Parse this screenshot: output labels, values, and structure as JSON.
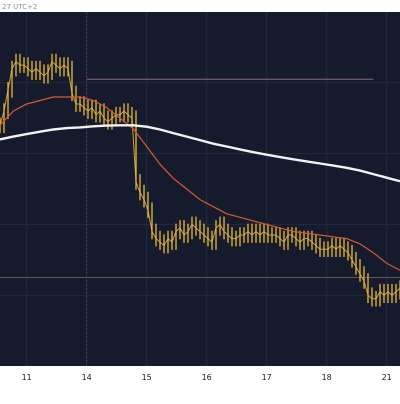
{
  "header": {
    "timezone_text": "27 UTC+2"
  },
  "colors": {
    "plot_bg": "#151b2c",
    "page_bg": "#ffffff",
    "grid": "#222a3d",
    "price": "#e8b93a",
    "ma_fast": "#d8582f",
    "ma_slow": "#f2f2f2",
    "level_upper": "#8a6a78",
    "level_lower": "#6a5346",
    "tick_text": "#1a1a1a"
  },
  "chart_data": {
    "type": "line",
    "xlabel": "",
    "ylabel": "",
    "title": "",
    "x_ticks": [
      {
        "label": "11",
        "t": 2
      },
      {
        "label": "14",
        "t": 6.5
      },
      {
        "label": "15",
        "t": 11
      },
      {
        "label": "16",
        "t": 15.5
      },
      {
        "label": "17",
        "t": 20
      },
      {
        "label": "18",
        "t": 24.5
      },
      {
        "label": "21",
        "t": 29
      }
    ],
    "xlim": [
      0,
      30
    ],
    "ylim": [
      0,
      100
    ],
    "grid": true,
    "series": [
      {
        "role": "price",
        "x": [
          0,
          0.3,
          0.6,
          0.9,
          1.2,
          1.5,
          1.8,
          2.1,
          2.4,
          2.7,
          3,
          3.3,
          3.6,
          3.9,
          4.2,
          4.5,
          4.8,
          5.1,
          5.4,
          5.7,
          6,
          6.3,
          6.6,
          6.9,
          7.2,
          7.5,
          7.8,
          8.1,
          8.4,
          8.7,
          9,
          9.3,
          9.6,
          9.9,
          10.2,
          10.5,
          10.8,
          11.1,
          11.4,
          11.7,
          12,
          12.3,
          12.6,
          12.9,
          13.2,
          13.5,
          13.8,
          14.1,
          14.4,
          14.7,
          15,
          15.3,
          15.6,
          15.9,
          16.2,
          16.5,
          16.8,
          17.1,
          17.4,
          17.7,
          18,
          18.3,
          18.6,
          18.9,
          19.2,
          19.5,
          19.8,
          20.1,
          20.4,
          20.7,
          21,
          21.3,
          21.6,
          21.9,
          22.2,
          22.5,
          22.8,
          23.1,
          23.4,
          23.7,
          24,
          24.3,
          24.6,
          24.9,
          25.2,
          25.5,
          25.8,
          26.1,
          26.4,
          26.7,
          27,
          27.3,
          27.6,
          27.9,
          28.2,
          28.5,
          28.8,
          29.1,
          29.4,
          29.7,
          30
        ],
        "y": [
          68,
          72,
          78,
          84,
          86,
          85,
          85,
          84,
          83,
          84,
          83,
          82,
          83,
          86,
          85,
          84,
          85,
          84,
          77,
          74,
          74,
          73,
          72,
          73,
          71,
          72,
          70,
          69,
          70,
          71,
          71,
          72,
          71,
          70,
          52,
          49,
          47,
          44,
          38,
          36,
          35,
          34,
          36,
          35,
          38,
          39,
          37,
          38,
          40,
          39,
          38,
          37,
          36,
          35,
          39,
          40,
          38,
          37,
          36,
          36,
          37,
          37,
          38,
          37,
          38,
          37,
          38,
          37,
          37,
          37,
          36,
          35,
          37,
          37,
          36,
          35,
          36,
          36,
          35,
          34,
          33,
          33,
          33,
          34,
          33,
          34,
          33,
          32,
          30,
          28,
          26,
          24,
          20,
          19,
          19,
          21,
          20,
          21,
          20,
          21,
          22
        ]
      },
      {
        "role": "ma_fast",
        "x": [
          0,
          1,
          2,
          3,
          4,
          5,
          6,
          7,
          8,
          9,
          10,
          11,
          12,
          13,
          14,
          15,
          16,
          17,
          18,
          19,
          20,
          21,
          22,
          23,
          24,
          25,
          26,
          27,
          28,
          29,
          30
        ],
        "y": [
          68,
          72,
          74,
          75,
          76,
          76,
          76,
          75,
          73,
          70,
          67,
          62,
          57,
          53,
          50,
          47,
          45,
          43,
          42,
          41,
          40,
          39,
          38,
          37.5,
          37,
          36.5,
          36,
          34.5,
          32,
          29,
          27
        ]
      },
      {
        "role": "ma_slow",
        "x": [
          0,
          1,
          2,
          3,
          4,
          5,
          6,
          7,
          8,
          9,
          10,
          11,
          12,
          13,
          14,
          15,
          16,
          17,
          18,
          19,
          20,
          21,
          22,
          23,
          24,
          25,
          26,
          27,
          28,
          29,
          30
        ],
        "y": [
          64,
          64.8,
          65.5,
          66.2,
          66.8,
          67.2,
          67.4,
          67.7,
          67.9,
          68,
          68,
          67.6,
          66.8,
          65.8,
          64.8,
          63.8,
          62.8,
          62,
          61.2,
          60.4,
          59.7,
          59,
          58.4,
          57.8,
          57.2,
          56.6,
          56,
          55.2,
          54.2,
          53.2,
          52.2
        ]
      }
    ],
    "levels": [
      {
        "role": "level_upper",
        "y": 81,
        "x_from": 6.5,
        "x_to": 28
      },
      {
        "role": "level_lower",
        "y": 25,
        "x_from": 0,
        "x_to": 30
      }
    ],
    "markers": [
      {
        "role": "vline",
        "x": 6.5
      }
    ]
  }
}
